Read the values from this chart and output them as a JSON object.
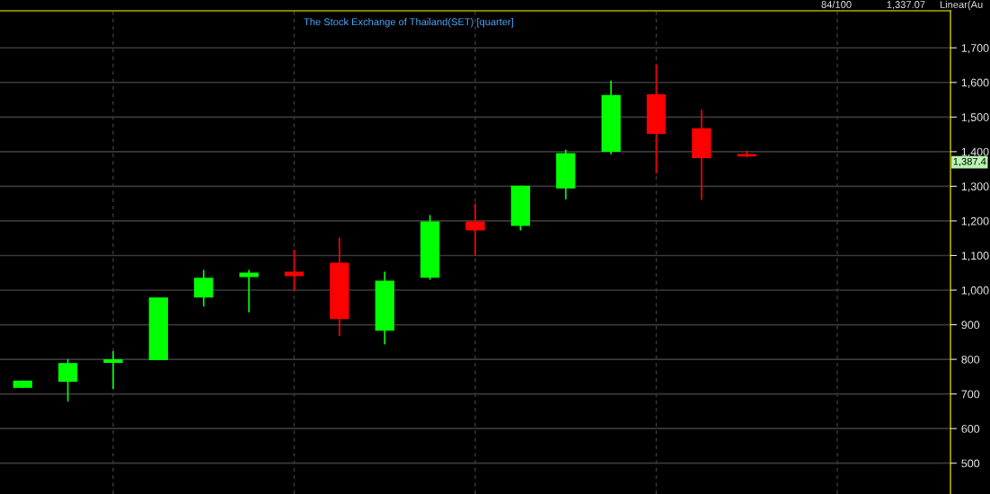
{
  "chart_data": {
    "type": "candlestick",
    "title": "The Stock Exchange of Thailand(SET) [quarter]",
    "categories": [
      null,
      null,
      null,
      null,
      null,
      null,
      null,
      null,
      null,
      null,
      null,
      null,
      null,
      null,
      null,
      null,
      null,
      null,
      null,
      null,
      null
    ],
    "ohlc": [
      [
        719,
        737,
        719,
        737
      ],
      [
        737,
        799,
        680,
        788
      ],
      [
        791,
        822,
        716,
        799
      ],
      [
        799,
        977,
        799,
        977
      ],
      [
        980,
        1057,
        954,
        1034
      ],
      [
        1039,
        1057,
        938,
        1049
      ],
      [
        1052,
        1115,
        1000,
        1042
      ],
      [
        1078,
        1150,
        869,
        918
      ],
      [
        884,
        1052,
        845,
        1026
      ],
      [
        1037,
        1215,
        1032,
        1197
      ],
      [
        1197,
        1249,
        1101,
        1174
      ],
      [
        1187,
        1300,
        1174,
        1300
      ],
      [
        1295,
        1404,
        1264,
        1394
      ],
      [
        1401,
        1603,
        1394,
        1562
      ],
      [
        1564,
        1650,
        1339,
        1453
      ],
      [
        1466,
        1520,
        1262,
        1383
      ],
      [
        1392,
        1401,
        1386,
        1387.4
      ],
      null,
      null,
      null,
      null
    ],
    "colors": [
      "#00ff00",
      "#00ff00",
      "#00ff00",
      "#00ff00",
      "#00ff00",
      "#00ff00",
      "#ff0000",
      "#ff0000",
      "#00ff00",
      "#00ff00",
      "#ff0000",
      "#00ff00",
      "#00ff00",
      "#00ff00",
      "#ff0000",
      "#ff0000",
      "#ff0000",
      null,
      null,
      null,
      null
    ],
    "ylim": [
      411,
      1807
    ],
    "yticks": [
      500,
      600,
      700,
      800,
      900,
      {
        "value": 1000,
        "label": "1,000"
      },
      {
        "value": 1100,
        "label": "1,100"
      },
      {
        "value": 1200,
        "label": "1,200"
      },
      {
        "value": 1300,
        "label": "1,300"
      },
      {
        "value": 1400,
        "label": "1,400"
      },
      {
        "value": 1500,
        "label": "1,500"
      },
      {
        "value": 1600,
        "label": "1,600"
      },
      {
        "value": 1700,
        "label": "1,700"
      }
    ],
    "tick_labels": "y",
    "grid": true,
    "annotations": [
      "1,387.4",
      "84/100",
      "1,337.07",
      "Linear(Au"
    ]
  }
}
